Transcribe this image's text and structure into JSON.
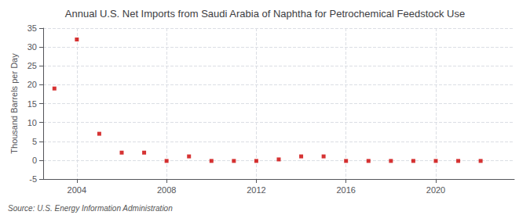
{
  "chart_data": {
    "type": "scatter",
    "title": "Annual U.S. Net Imports from Saudi Arabia of Naphtha for Petrochemical Feedstock Use",
    "ylabel": "Thousand Barrels per Day",
    "annotations": [
      "Source: U.S. Energy Information Administration"
    ],
    "x": [
      2003,
      2004,
      2005,
      2006,
      2007,
      2008,
      2009,
      2010,
      2011,
      2012,
      2013,
      2014,
      2015,
      2016,
      2017,
      2018,
      2019,
      2020,
      2021,
      2022
    ],
    "values": [
      19.0,
      32.0,
      7.0,
      2.0,
      2.0,
      -0.2,
      1.0,
      -0.2,
      -0.2,
      -0.2,
      0.2,
      1.0,
      1.0,
      -0.2,
      -0.2,
      -0.2,
      -0.2,
      -0.2,
      -0.2,
      -0.2
    ],
    "color": "#cc0000",
    "marker": "square",
    "xlim": [
      2002.5,
      2023.5
    ],
    "xticks": [
      2004,
      2008,
      2012,
      2016,
      2020
    ],
    "ylim": [
      -5,
      35
    ],
    "yticks": [
      -5,
      0,
      5,
      10,
      15,
      20,
      25,
      30,
      35
    ],
    "grid": true
  }
}
